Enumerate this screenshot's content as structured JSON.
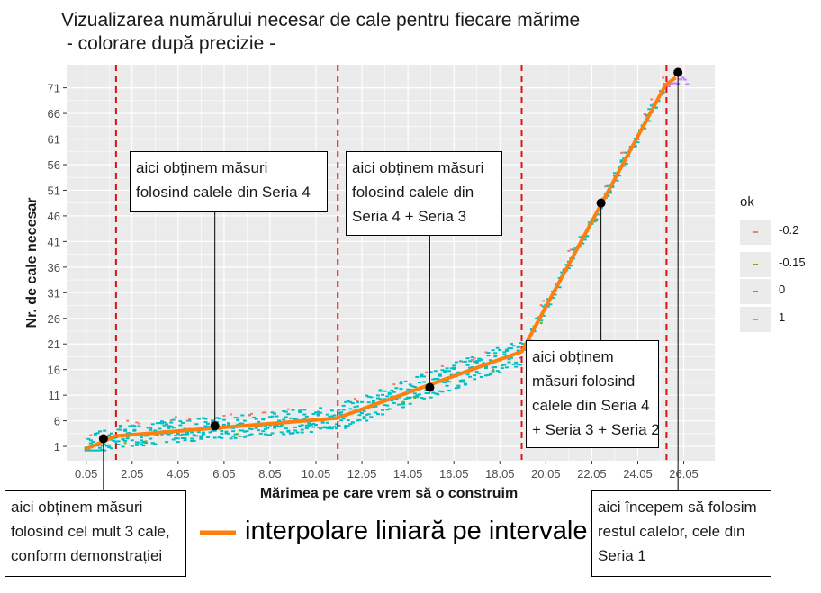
{
  "title": {
    "line1": "Vizualizarea numărului necesar de cale pentru fiecare mărime",
    "line2": " - colorare după precizie -"
  },
  "colors": {
    "panel_bg": "#ebebeb",
    "grid": "#ffffff",
    "dashed_lines": "#dd1111",
    "interpolation": "#ff7f0e",
    "points": "#000000"
  },
  "chart_data": {
    "type": "scatter",
    "xlabel": "Mărimea pe care vrem să o construim",
    "ylabel": "Nr. de cale necesar",
    "xlim": [
      -0.8,
      27.4
    ],
    "ylim": [
      -1.8,
      75.5
    ],
    "x_ticks": [
      0.05,
      2.05,
      4.05,
      6.05,
      8.05,
      10.05,
      12.05,
      14.05,
      16.05,
      18.05,
      20.05,
      22.05,
      24.05,
      26.05
    ],
    "x_tick_labels": [
      "0.05",
      "2.05",
      "4.05",
      "6.05",
      "8.05",
      "10.05",
      "12.05",
      "14.05",
      "16.05",
      "18.05",
      "20.05",
      "22.05",
      "24.05",
      "26.05"
    ],
    "y_ticks": [
      1,
      6,
      11,
      16,
      21,
      26,
      31,
      36,
      41,
      46,
      51,
      56,
      61,
      66,
      71
    ],
    "y_tick_labels": [
      "1",
      "6",
      "11",
      "16",
      "21",
      "26",
      "31",
      "36",
      "41",
      "46",
      "51",
      "56",
      "61",
      "66",
      "71"
    ],
    "grid": true,
    "legend": {
      "title": "ok",
      "position": "right",
      "entries": [
        {
          "label": "-0.2",
          "color": "#f8766d"
        },
        {
          "label": "-0.15",
          "color": "#7cae00"
        },
        {
          "label": "0",
          "color": "#00bfc4"
        },
        {
          "label": "1",
          "color": "#c77cff"
        }
      ]
    },
    "interpolation": {
      "name": "interpolare liniară pe intervale",
      "x": [
        0.05,
        1.3,
        10.95,
        19.0,
        25.25,
        25.7
      ],
      "y": [
        0.5,
        3.0,
        6.5,
        19.5,
        71.5,
        73.0
      ]
    },
    "highlight_points": {
      "x": [
        0.8,
        5.65,
        15.0,
        22.45,
        25.8
      ],
      "y": [
        2.5,
        5.0,
        12.5,
        48.5,
        74.0
      ]
    },
    "vertical_lines_x": [
      1.35,
      11.0,
      19.0,
      25.3
    ]
  },
  "annotations": [
    {
      "id": "seria4",
      "lines": [
        "aici obținem măsuri",
        "folosind calele din Seria 4"
      ]
    },
    {
      "id": "seria43",
      "lines": [
        "aici obținem măsuri",
        "folosind calele din",
        "Seria 4 + Seria 3"
      ]
    },
    {
      "id": "seria432",
      "lines": [
        "aici obținem",
        "măsuri folosind",
        "calele din Seria 4",
        "+ Seria 3 + Seria 2"
      ]
    },
    {
      "id": "max3",
      "lines": [
        "aici obținem măsuri",
        "folosind cel mult 3 cale,",
        "conform demonstrației"
      ]
    },
    {
      "id": "seria1",
      "lines": [
        "aici începem să folosim",
        "restul calelor, cele din",
        "Seria 1"
      ]
    }
  ]
}
